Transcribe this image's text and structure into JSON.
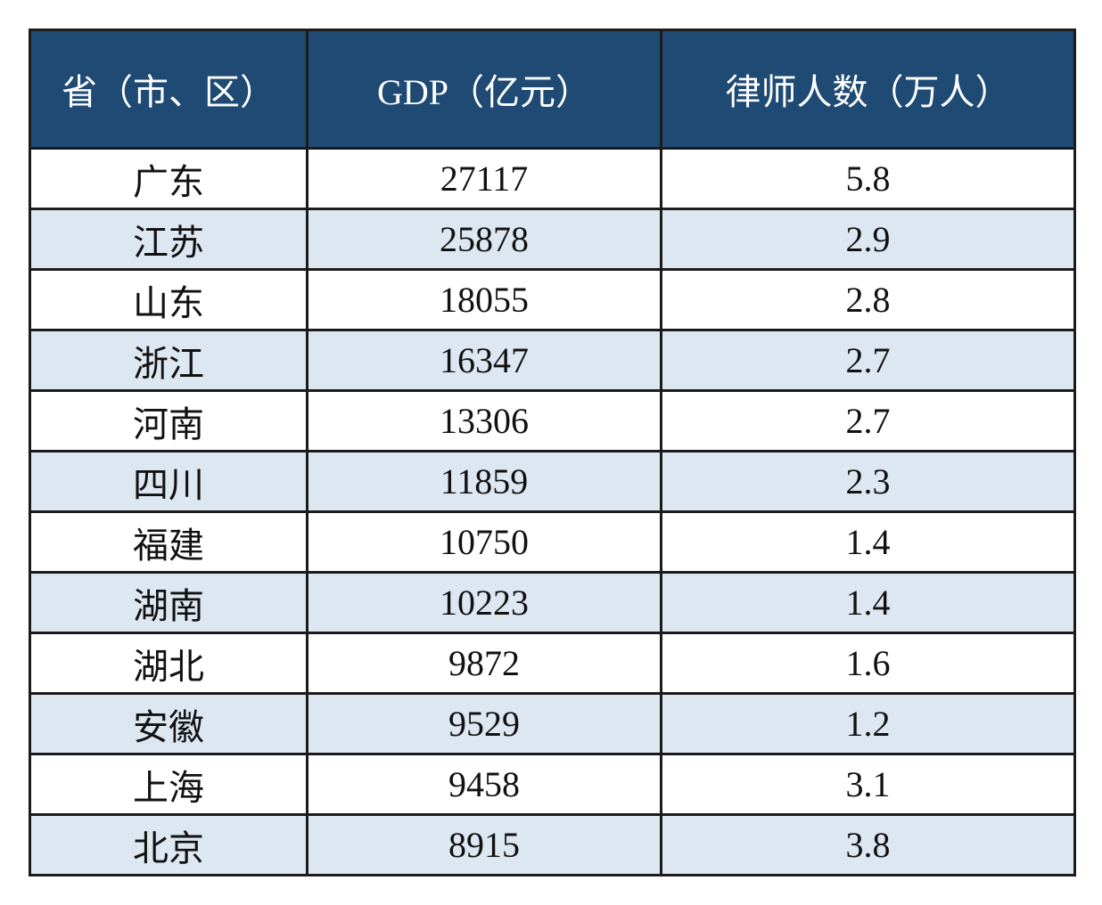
{
  "table": {
    "header": [
      "省（市、区）",
      "GDP（亿元）",
      "律师人数（万人）"
    ],
    "rows": [
      [
        "广东",
        "27117",
        "5.8"
      ],
      [
        "江苏",
        "25878",
        "2.9"
      ],
      [
        "山东",
        "18055",
        "2.8"
      ],
      [
        "浙江",
        "16347",
        "2.7"
      ],
      [
        "河南",
        "13306",
        "2.7"
      ],
      [
        "四川",
        "11859",
        "2.3"
      ],
      [
        "福建",
        "10750",
        "1.4"
      ],
      [
        "湖南",
        "10223",
        "1.4"
      ],
      [
        "湖北",
        "9872",
        "1.6"
      ],
      [
        "安徽",
        "9529",
        "1.2"
      ],
      [
        "上海",
        "9458",
        "3.1"
      ],
      [
        "北京",
        "8915",
        "3.8"
      ]
    ]
  }
}
